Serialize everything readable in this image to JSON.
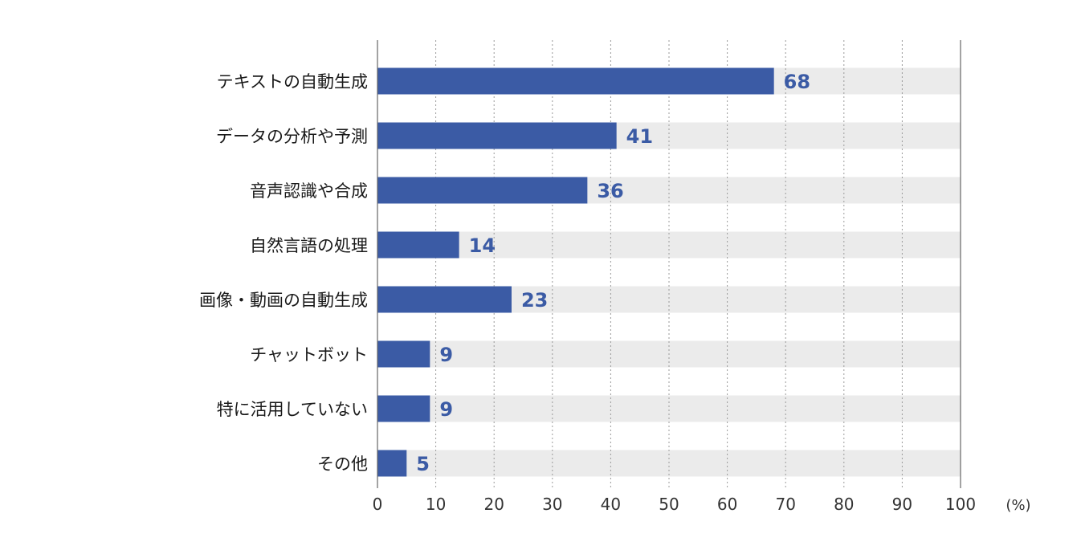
{
  "chart_data": {
    "type": "bar",
    "orientation": "horizontal",
    "title": "",
    "xlabel": "",
    "ylabel": "",
    "unit_label": "(%)",
    "xlim": [
      0,
      100
    ],
    "x_ticks": [
      0,
      10,
      20,
      30,
      40,
      50,
      60,
      70,
      80,
      90,
      100
    ],
    "grid": "vertical-dotted",
    "categories": [
      "テキストの自動生成",
      "データの分析や予測",
      "音声認識や合成",
      "自然言語の処理",
      "画像・動画の自動生成",
      "チャットボット",
      "特に活用していない",
      "その他"
    ],
    "values": [
      68,
      41,
      36,
      14,
      23,
      9,
      9,
      5
    ],
    "colors": {
      "bar": "#3b5ba5",
      "track": "#ebebeb",
      "value_text": "#3b5ba5",
      "grid": "#9a9a9a",
      "axis": "#666666"
    }
  }
}
